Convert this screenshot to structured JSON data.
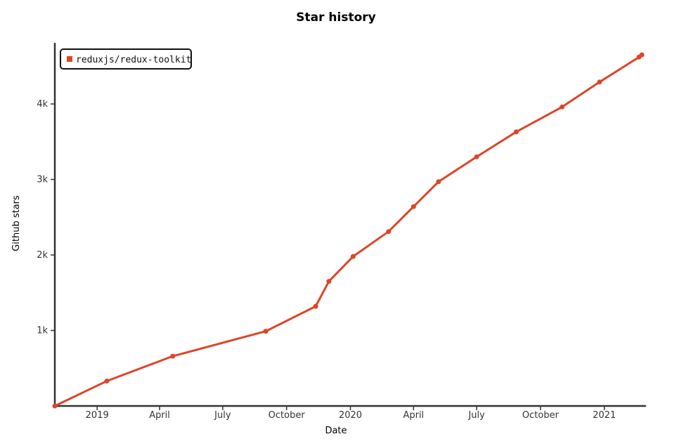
{
  "chart_data": {
    "type": "line",
    "title": "Star history",
    "xlabel": "Date",
    "ylabel": "Github stars",
    "xlim": [
      "2018-11-01",
      "2021-03-01"
    ],
    "ylim": [
      0,
      4800
    ],
    "x_ticks": [
      {
        "date": "2019-01-01",
        "label": "2019"
      },
      {
        "date": "2019-04-01",
        "label": "April"
      },
      {
        "date": "2019-07-01",
        "label": "July"
      },
      {
        "date": "2019-10-01",
        "label": "October"
      },
      {
        "date": "2020-01-01",
        "label": "2020"
      },
      {
        "date": "2020-04-01",
        "label": "April"
      },
      {
        "date": "2020-07-01",
        "label": "July"
      },
      {
        "date": "2020-10-01",
        "label": "October"
      },
      {
        "date": "2021-01-01",
        "label": "2021"
      }
    ],
    "y_ticks": [
      {
        "value": 1000,
        "label": "1k"
      },
      {
        "value": 2000,
        "label": "2k"
      },
      {
        "value": 3000,
        "label": "3k"
      },
      {
        "value": 4000,
        "label": "4k"
      }
    ],
    "legend_position": "top-left",
    "grid": false,
    "series": [
      {
        "name": "reduxjs/redux-toolkit",
        "color": "#dd4528",
        "x": [
          "2018-11-01",
          "2019-01-15",
          "2019-04-20",
          "2019-09-01",
          "2019-11-12",
          "2019-12-01",
          "2020-01-05",
          "2020-02-25",
          "2020-04-01",
          "2020-05-07",
          "2020-07-01",
          "2020-08-27",
          "2020-11-01",
          "2020-12-25",
          "2021-02-20",
          "2021-02-24"
        ],
        "y": [
          0,
          330,
          660,
          990,
          1320,
          1650,
          1980,
          2310,
          2640,
          2970,
          3300,
          3630,
          3960,
          4290,
          4620,
          4650
        ]
      }
    ]
  }
}
